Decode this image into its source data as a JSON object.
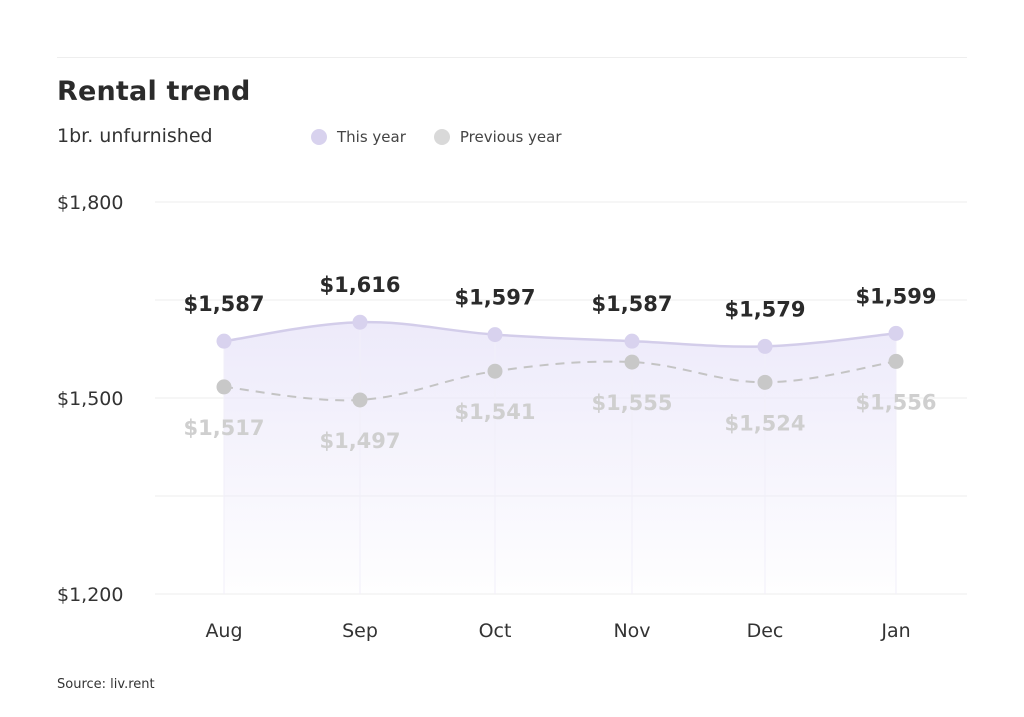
{
  "header": {
    "title": "Rental trend",
    "subtitle": "1br. unfurnished"
  },
  "legend": {
    "items": [
      {
        "label": "This year",
        "color": "#d8d2ee"
      },
      {
        "label": "Previous year",
        "color": "#d9d9d9"
      }
    ]
  },
  "footer": {
    "source": "Source: liv.rent"
  },
  "colors": {
    "this_year_line": "#d3cdea",
    "this_year_marker": "#d8d2ee",
    "this_year_label": "#2a2a2a",
    "prev_year_line": "#c4c4c4",
    "prev_year_marker": "#c8c8c8",
    "prev_year_label": "#cfcfcf",
    "area_top": "#ece9fa",
    "gridline": "#eeeeee"
  },
  "chart_data": {
    "type": "line",
    "title": "Rental trend",
    "subtitle": "1br. unfurnished",
    "categories": [
      "Aug",
      "Sep",
      "Oct",
      "Nov",
      "Dec",
      "Jan"
    ],
    "series": [
      {
        "name": "This year",
        "values": [
          1587,
          1616,
          1597,
          1587,
          1579,
          1599
        ],
        "labels": [
          "$1,587",
          "$1,616",
          "$1,597",
          "$1,587",
          "$1,579",
          "$1,599"
        ],
        "style": "solid",
        "fill": true
      },
      {
        "name": "Previous year",
        "values": [
          1517,
          1497,
          1541,
          1555,
          1524,
          1556
        ],
        "labels": [
          "$1,517",
          "$1,497",
          "$1,541",
          "$1,555",
          "$1,524",
          "$1,556"
        ],
        "style": "dashed",
        "fill": false
      }
    ],
    "ylim": [
      1200,
      1800
    ],
    "yticks": [
      1200,
      1500,
      1800
    ],
    "ytick_labels": [
      "$1,200",
      "$1,500",
      "$1,800"
    ],
    "xlabel": "",
    "ylabel": "",
    "grid": true,
    "legend_position": "top"
  }
}
